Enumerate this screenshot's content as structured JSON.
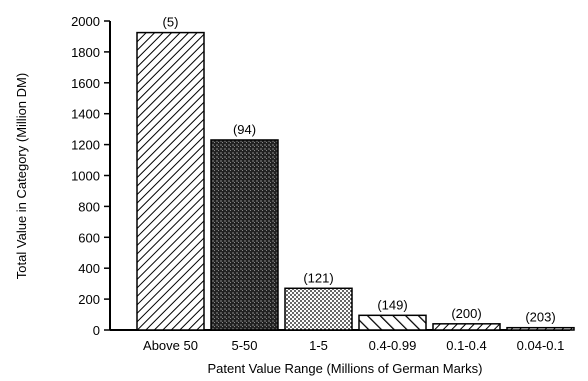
{
  "chart_data": {
    "type": "bar",
    "xlabel": "Patent Value Range (Millions of German Marks)",
    "ylabel": "Total Value in Category (Million DM)",
    "ylim": [
      0,
      2000
    ],
    "yticks": [
      0,
      200,
      400,
      600,
      800,
      1000,
      1200,
      1400,
      1600,
      1800,
      2000
    ],
    "grid": false,
    "categories": [
      "Above 50",
      "5-50",
      "1-5",
      "0.4-0.99",
      "0.1-0.4",
      "0.04-0.1"
    ],
    "values": [
      1925,
      1230,
      270,
      95,
      40,
      15
    ],
    "annotations": [
      "(5)",
      "(94)",
      "(121)",
      "(149)",
      "(200)",
      "(203)"
    ],
    "patterns": [
      "diagonal-hatch",
      "dense-crosshatch",
      "dots",
      "wide-diagonal-hatch",
      "diagonal-hatch",
      "diagonal-hatch"
    ]
  }
}
